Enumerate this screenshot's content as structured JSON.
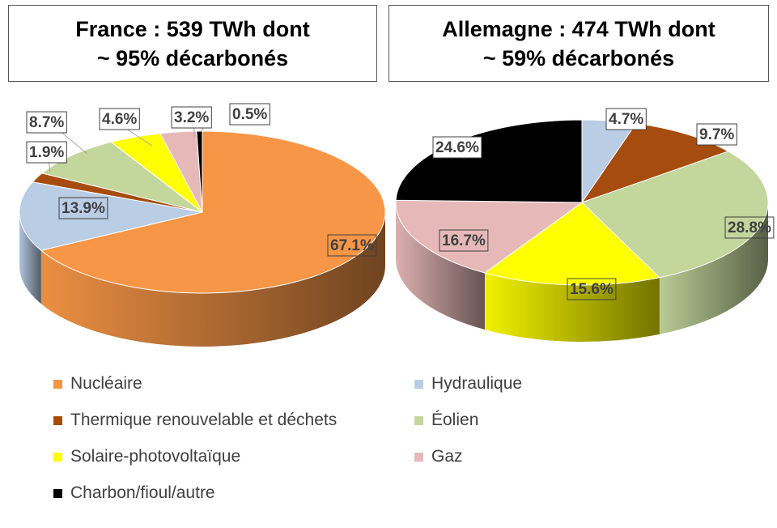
{
  "chart_data": [
    {
      "type": "pie",
      "title_line1": "France : 539 TWh dont",
      "title_line2": "~ 95% décarbonés",
      "slices": [
        {
          "category": "Nucléaire",
          "value": 67.1,
          "label": "67.1%",
          "color": "#F79646"
        },
        {
          "category": "Hydraulique",
          "value": 13.9,
          "label": "13.9%",
          "color": "#B9CDE5"
        },
        {
          "category": "Thermique renouvelable et déchets",
          "value": 1.9,
          "label": "1.9%",
          "color": "#A64C0F"
        },
        {
          "category": "Éolien",
          "value": 8.7,
          "label": "8.7%",
          "color": "#C3D69B"
        },
        {
          "category": "Solaire-photovoltaïque",
          "value": 4.6,
          "label": "4.6%",
          "color": "#FFFF00"
        },
        {
          "category": "Gaz",
          "value": 3.2,
          "label": "3.2%",
          "color": "#E6B9B8"
        },
        {
          "category": "Charbon/fioul/autre",
          "value": 0.5,
          "label": "0.5%",
          "color": "#000000"
        }
      ]
    },
    {
      "type": "pie",
      "title_line1": "Allemagne : 474 TWh dont",
      "title_line2": "~ 59% décarbonés",
      "slices": [
        {
          "category": "Hydraulique",
          "value": 4.7,
          "label": "4.7%",
          "color": "#B9CDE5"
        },
        {
          "category": "Thermique renouvelable et déchets",
          "value": 9.7,
          "label": "9.7%",
          "color": "#A64C0F"
        },
        {
          "category": "Éolien",
          "value": 28.8,
          "label": "28.8%",
          "color": "#C3D69B"
        },
        {
          "category": "Solaire-photovoltaïque",
          "value": 15.6,
          "label": "15.6%",
          "color": "#FFFF00"
        },
        {
          "category": "Gaz",
          "value": 16.7,
          "label": "16.7%",
          "color": "#E6B9B8"
        },
        {
          "category": "Charbon/fioul/autre",
          "value": 24.6,
          "label": "24.6%",
          "color": "#000000"
        }
      ]
    }
  ],
  "legend": [
    {
      "label": "Nucléaire",
      "color": "#F79646"
    },
    {
      "label": "Hydraulique",
      "color": "#B9CDE5"
    },
    {
      "label": "Thermique renouvelable et déchets",
      "color": "#A64C0F"
    },
    {
      "label": "Éolien",
      "color": "#C3D69B"
    },
    {
      "label": "Solaire-photovoltaïque",
      "color": "#FFFF00"
    },
    {
      "label": "Gaz",
      "color": "#E6B9B8"
    },
    {
      "label": "Charbon/fioul/autre",
      "color": "#000000"
    }
  ]
}
